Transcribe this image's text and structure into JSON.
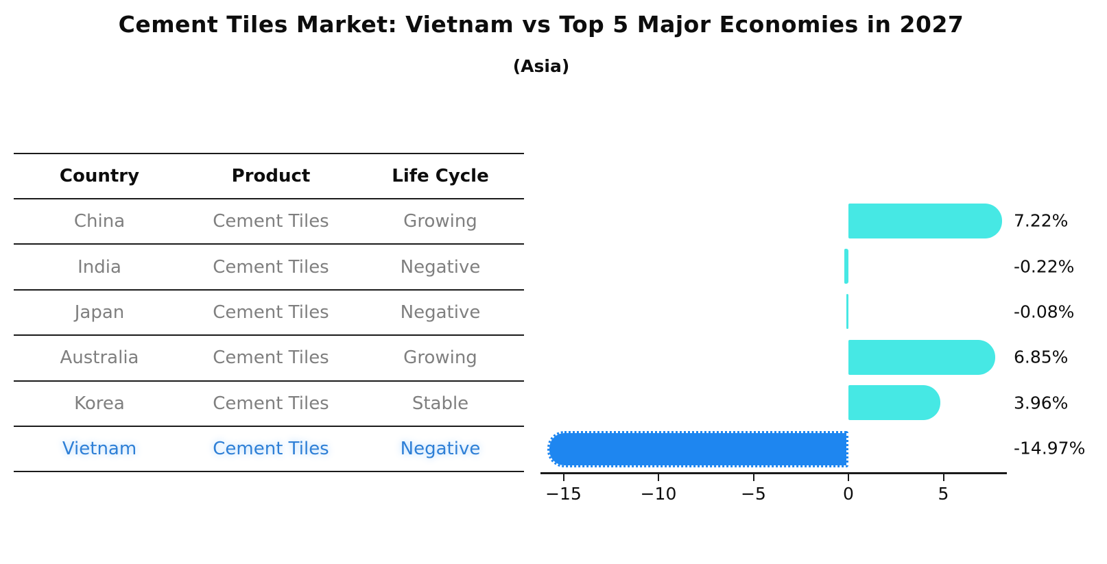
{
  "title": "Cement Tiles Market: Vietnam vs Top 5 Major Economies in 2027",
  "subtitle": "(Asia)",
  "table": {
    "headers": [
      "Country",
      "Product",
      "Life Cycle"
    ],
    "rows": [
      {
        "country": "China",
        "product": "Cement Tiles",
        "life_cycle": "Growing",
        "highlight": false
      },
      {
        "country": "India",
        "product": "Cement Tiles",
        "life_cycle": "Negative",
        "highlight": false
      },
      {
        "country": "Japan",
        "product": "Cement Tiles",
        "life_cycle": "Negative",
        "highlight": false
      },
      {
        "country": "Australia",
        "product": "Cement Tiles",
        "life_cycle": "Growing",
        "highlight": false
      },
      {
        "country": "Korea",
        "product": "Cement Tiles",
        "life_cycle": "Stable",
        "highlight": false
      },
      {
        "country": "Vietnam",
        "product": "Cement Tiles",
        "life_cycle": "Negative",
        "highlight": true
      }
    ]
  },
  "chart_data": {
    "type": "bar",
    "orientation": "horizontal",
    "categories": [
      "China",
      "India",
      "Japan",
      "Australia",
      "Korea",
      "Vietnam"
    ],
    "values": [
      7.22,
      -0.22,
      -0.08,
      6.85,
      3.96,
      -14.97
    ],
    "value_labels": [
      "7.22%",
      "-0.22%",
      "-0.08%",
      "6.85%",
      "3.96%",
      "-14.97%"
    ],
    "xticks": [
      -15,
      -10,
      -5,
      0,
      5
    ],
    "xlim": [
      -16.2,
      8.4
    ],
    "grid": false,
    "legend": "none",
    "highlight_category": "Vietnam",
    "colors": {
      "bar_default": "#46e8e4",
      "bar_highlight": "#1e86f0",
      "highlight_text": "#2e7fd6",
      "table_text": "#7f7f7f",
      "axis_text": "#0d0d0d"
    }
  }
}
